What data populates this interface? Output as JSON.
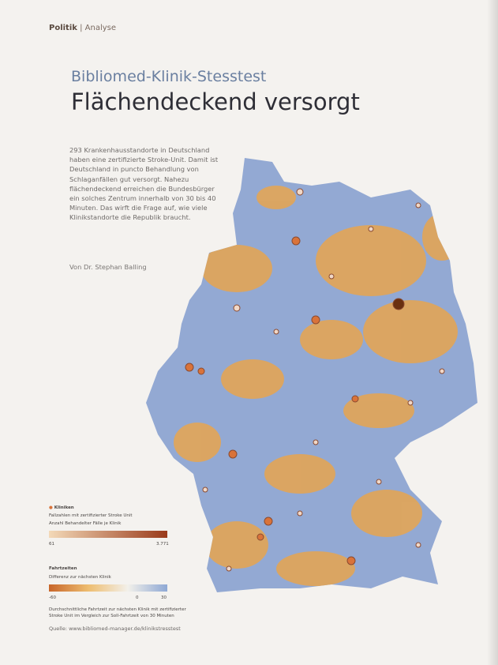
{
  "header": {
    "section": "Politik",
    "subsection": "Analyse",
    "kicker": "Bibliomed-Klinik-Stesstest",
    "title": "Flächendeckend versorgt"
  },
  "intro": "293 Krankenhausstandorte in Deutschland haben eine zertifizierte Stroke-Unit. Damit ist Deutschland in puncto Behandlung von Schlaganfällen gut versorgt. Nahezu flächendeckend erreichen die Bundesbürger ein solches Zentrum innerhalb von 30 bis 40 Minuten. Das wirft die Frage auf, wie viele Klinikstandorte die Republik braucht.",
  "author": "Von Dr. Stephan Balling",
  "legend": {
    "clinics_title": "Kliniken",
    "clinics_subtitle": "Fallzahlen mit zertifizierter Stroke Unit",
    "clinics_measure": "Anzahl Behandelter Fälle je Klinik",
    "clinics_min": "61",
    "clinics_max": "3.771",
    "travel_title": "Fahrtzeiten",
    "travel_measure": "Differenz zur nächsten Klinik",
    "travel_min": "-60",
    "travel_mid": "0",
    "travel_max": "30",
    "note": "Durchschnittliche Fahrtzeit zur nächsten Klinik mit zertifizierter Stroke Unit im Vergleich zur Soll-Fahrtzeit von 30 Minuten"
  },
  "source": "Quelle: www.bibliomed-manager.de/klinikstresstest"
}
